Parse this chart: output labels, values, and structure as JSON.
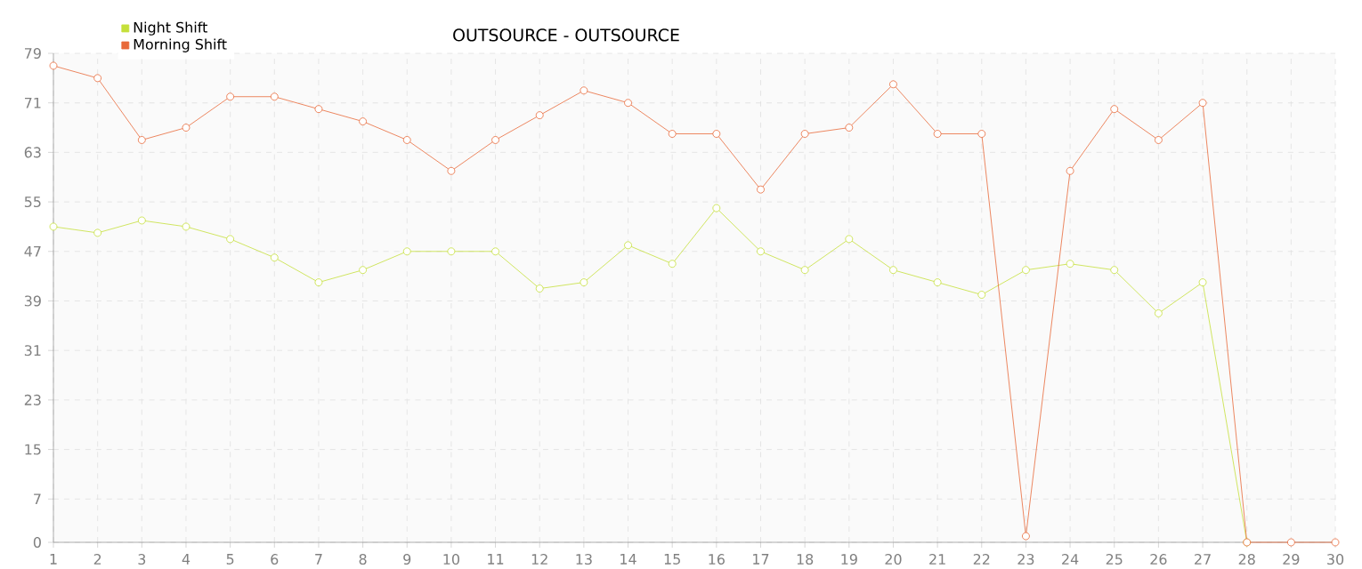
{
  "chart_data": {
    "type": "line",
    "title": "OUTSOURCE - OUTSOURCE",
    "x": [
      1,
      2,
      3,
      4,
      5,
      6,
      7,
      8,
      9,
      10,
      11,
      12,
      13,
      14,
      15,
      16,
      17,
      18,
      19,
      20,
      21,
      22,
      23,
      24,
      25,
      26,
      27,
      28,
      29,
      30
    ],
    "series": [
      {
        "name": "Night Shift",
        "color": "#c5e03a",
        "values": [
          51,
          50,
          52,
          51,
          49,
          46,
          42,
          44,
          47,
          47,
          47,
          41,
          42,
          48,
          45,
          54,
          47,
          44,
          49,
          44,
          42,
          40,
          44,
          45,
          44,
          37,
          42,
          0,
          null,
          null
        ]
      },
      {
        "name": "Morning Shift",
        "color": "#e8693a",
        "values": [
          77,
          75,
          65,
          67,
          72,
          72,
          70,
          68,
          65,
          60,
          65,
          69,
          73,
          71,
          66,
          66,
          57,
          66,
          67,
          74,
          66,
          66,
          1,
          60,
          70,
          65,
          71,
          0,
          0,
          0
        ]
      }
    ],
    "xlim": [
      1,
      30
    ],
    "xticks": [
      1,
      2,
      3,
      4,
      5,
      6,
      7,
      8,
      9,
      10,
      11,
      12,
      13,
      14,
      15,
      16,
      17,
      18,
      19,
      20,
      21,
      22,
      23,
      24,
      25,
      26,
      27,
      28,
      29,
      30
    ],
    "ylim": [
      0,
      79
    ],
    "yticks": [
      0,
      7,
      15,
      23,
      31,
      39,
      47,
      55,
      63,
      71,
      79
    ],
    "grid": true,
    "legend": "top left",
    "marker": "circle",
    "line_style": "solid"
  }
}
